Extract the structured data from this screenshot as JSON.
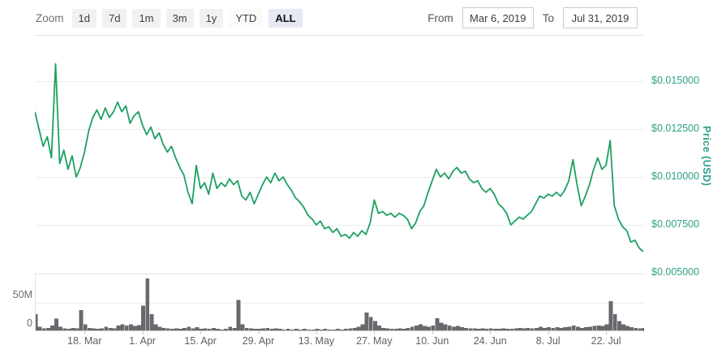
{
  "toolbar": {
    "zoom_label": "Zoom",
    "buttons": [
      {
        "label": "1d",
        "active": false
      },
      {
        "label": "7d",
        "active": false
      },
      {
        "label": "1m",
        "active": false
      },
      {
        "label": "3m",
        "active": false
      },
      {
        "label": "1y",
        "active": false
      },
      {
        "label": "YTD",
        "active": false
      },
      {
        "label": "ALL",
        "active": true
      }
    ],
    "from_label": "From",
    "from_value": "Mar 6, 2019",
    "to_label": "To",
    "to_value": "Jul 31, 2019"
  },
  "colors": {
    "price_line": "#1ca05f",
    "axis_label_green": "#2ca189",
    "volume_bar": "#67696e",
    "gridline": "#ececec"
  },
  "chart_data": [
    {
      "type": "line",
      "name": "price",
      "ylabel": "Price (USD)",
      "start_date": "Mar 6, 2019",
      "end_date": "Jul 31, 2019",
      "x_unit": "day",
      "grid": true,
      "legend": "none",
      "y_axis_side": "right",
      "y_range": [
        0.005,
        0.01737
      ],
      "y_ticks": [
        {
          "value": 0.015,
          "label": "$0.015000"
        },
        {
          "value": 0.0125,
          "label": "$0.012500"
        },
        {
          "value": 0.01,
          "label": "$0.010000"
        },
        {
          "value": 0.0075,
          "label": "$0.007500"
        },
        {
          "value": 0.005,
          "label": "$0.005000"
        }
      ],
      "x_ticks": [
        {
          "day": 12,
          "label": "18. Mar"
        },
        {
          "day": 26,
          "label": "1. Apr"
        },
        {
          "day": 40,
          "label": "15. Apr"
        },
        {
          "day": 54,
          "label": "29. Apr"
        },
        {
          "day": 68,
          "label": "13. May"
        },
        {
          "day": 82,
          "label": "27. May"
        },
        {
          "day": 96,
          "label": "10. Jun"
        },
        {
          "day": 110,
          "label": "24. Jun"
        },
        {
          "day": 124,
          "label": "8. Jul"
        },
        {
          "day": 138,
          "label": "22. Jul"
        }
      ],
      "values": [
        0.0134,
        0.0125,
        0.0116,
        0.0121,
        0.011,
        0.0159,
        0.0107,
        0.0114,
        0.0104,
        0.0111,
        0.01,
        0.0105,
        0.0113,
        0.0124,
        0.0131,
        0.0135,
        0.013,
        0.0136,
        0.0131,
        0.0134,
        0.0139,
        0.0134,
        0.0137,
        0.0128,
        0.0132,
        0.0134,
        0.0127,
        0.0122,
        0.0126,
        0.012,
        0.0123,
        0.0117,
        0.0113,
        0.0116,
        0.011,
        0.0105,
        0.0101,
        0.0092,
        0.0086,
        0.0106,
        0.0094,
        0.0097,
        0.0091,
        0.0102,
        0.0094,
        0.0097,
        0.0095,
        0.0099,
        0.0096,
        0.0098,
        0.009,
        0.0088,
        0.0092,
        0.0086,
        0.0091,
        0.0096,
        0.01,
        0.0097,
        0.0102,
        0.0098,
        0.01,
        0.0096,
        0.0093,
        0.0089,
        0.0087,
        0.0084,
        0.008,
        0.0078,
        0.0075,
        0.0077,
        0.0073,
        0.0074,
        0.0071,
        0.0073,
        0.0069,
        0.007,
        0.0068,
        0.0071,
        0.0069,
        0.0072,
        0.007,
        0.0076,
        0.0088,
        0.0081,
        0.0082,
        0.008,
        0.0081,
        0.0079,
        0.0081,
        0.008,
        0.0078,
        0.0073,
        0.0076,
        0.0082,
        0.0085,
        0.0092,
        0.0098,
        0.0104,
        0.01,
        0.0102,
        0.0099,
        0.0103,
        0.0105,
        0.0102,
        0.0103,
        0.0099,
        0.0097,
        0.0098,
        0.0094,
        0.0092,
        0.0094,
        0.0091,
        0.0086,
        0.0084,
        0.0081,
        0.0075,
        0.0077,
        0.0079,
        0.0078,
        0.008,
        0.0082,
        0.0086,
        0.009,
        0.0089,
        0.0091,
        0.009,
        0.0092,
        0.009,
        0.0093,
        0.0098,
        0.0109,
        0.0096,
        0.0085,
        0.009,
        0.0096,
        0.0104,
        0.011,
        0.0104,
        0.0106,
        0.0119,
        0.0085,
        0.0078,
        0.0074,
        0.0072,
        0.0066,
        0.0067,
        0.0063,
        0.0061
      ]
    },
    {
      "type": "bar",
      "name": "volume",
      "unit": "millions",
      "y_range": [
        0,
        100
      ],
      "y_ticks": [
        {
          "value": 50,
          "label": "50M"
        },
        {
          "value": 0,
          "label": "0"
        }
      ],
      "values_millions": [
        30,
        8,
        5,
        6,
        10,
        22,
        8,
        5,
        4,
        6,
        5,
        37,
        12,
        6,
        5,
        4,
        5,
        8,
        6,
        5,
        10,
        12,
        10,
        12,
        9,
        11,
        45,
        93,
        30,
        12,
        8,
        6,
        5,
        4,
        5,
        4,
        6,
        8,
        5,
        7,
        4,
        5,
        4,
        6,
        4,
        3,
        4,
        8,
        6,
        55,
        12,
        6,
        5,
        4,
        4,
        5,
        6,
        4,
        5,
        4,
        3,
        4,
        3,
        4,
        3,
        4,
        3,
        3,
        4,
        3,
        4,
        3,
        3,
        4,
        3,
        4,
        5,
        6,
        8,
        12,
        33,
        25,
        18,
        10,
        6,
        5,
        4,
        4,
        5,
        4,
        6,
        8,
        10,
        12,
        9,
        8,
        10,
        23,
        15,
        12,
        10,
        8,
        9,
        7,
        6,
        5,
        5,
        4,
        5,
        4,
        5,
        4,
        4,
        5,
        4,
        4,
        5,
        6,
        5,
        6,
        5,
        6,
        8,
        6,
        7,
        6,
        7,
        6,
        7,
        8,
        10,
        8,
        6,
        7,
        8,
        9,
        10,
        9,
        12,
        53,
        30,
        18,
        12,
        9,
        7,
        6,
        5,
        6
      ]
    }
  ]
}
